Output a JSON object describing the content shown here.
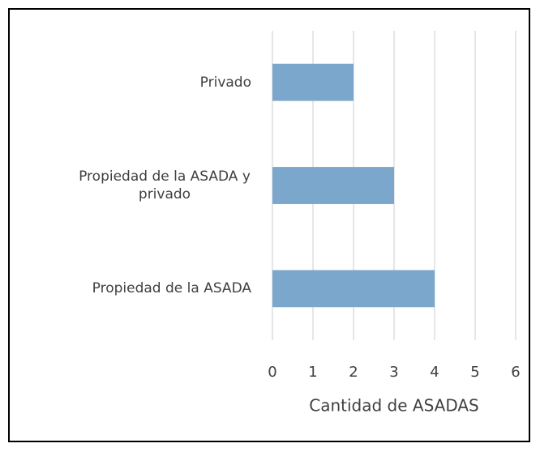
{
  "chart_data": {
    "type": "bar",
    "orientation": "horizontal",
    "categories": [
      "Privado",
      "Propiedad de la ASADA y privado",
      "Propiedad de la ASADA"
    ],
    "values": [
      2,
      3,
      4
    ],
    "color": "#7ba7cc",
    "xlabel": "Cantidad de ASADAS",
    "xlim": [
      0,
      6
    ],
    "xticks": [
      0,
      1,
      2,
      3,
      4,
      5,
      6
    ],
    "grid": true
  }
}
